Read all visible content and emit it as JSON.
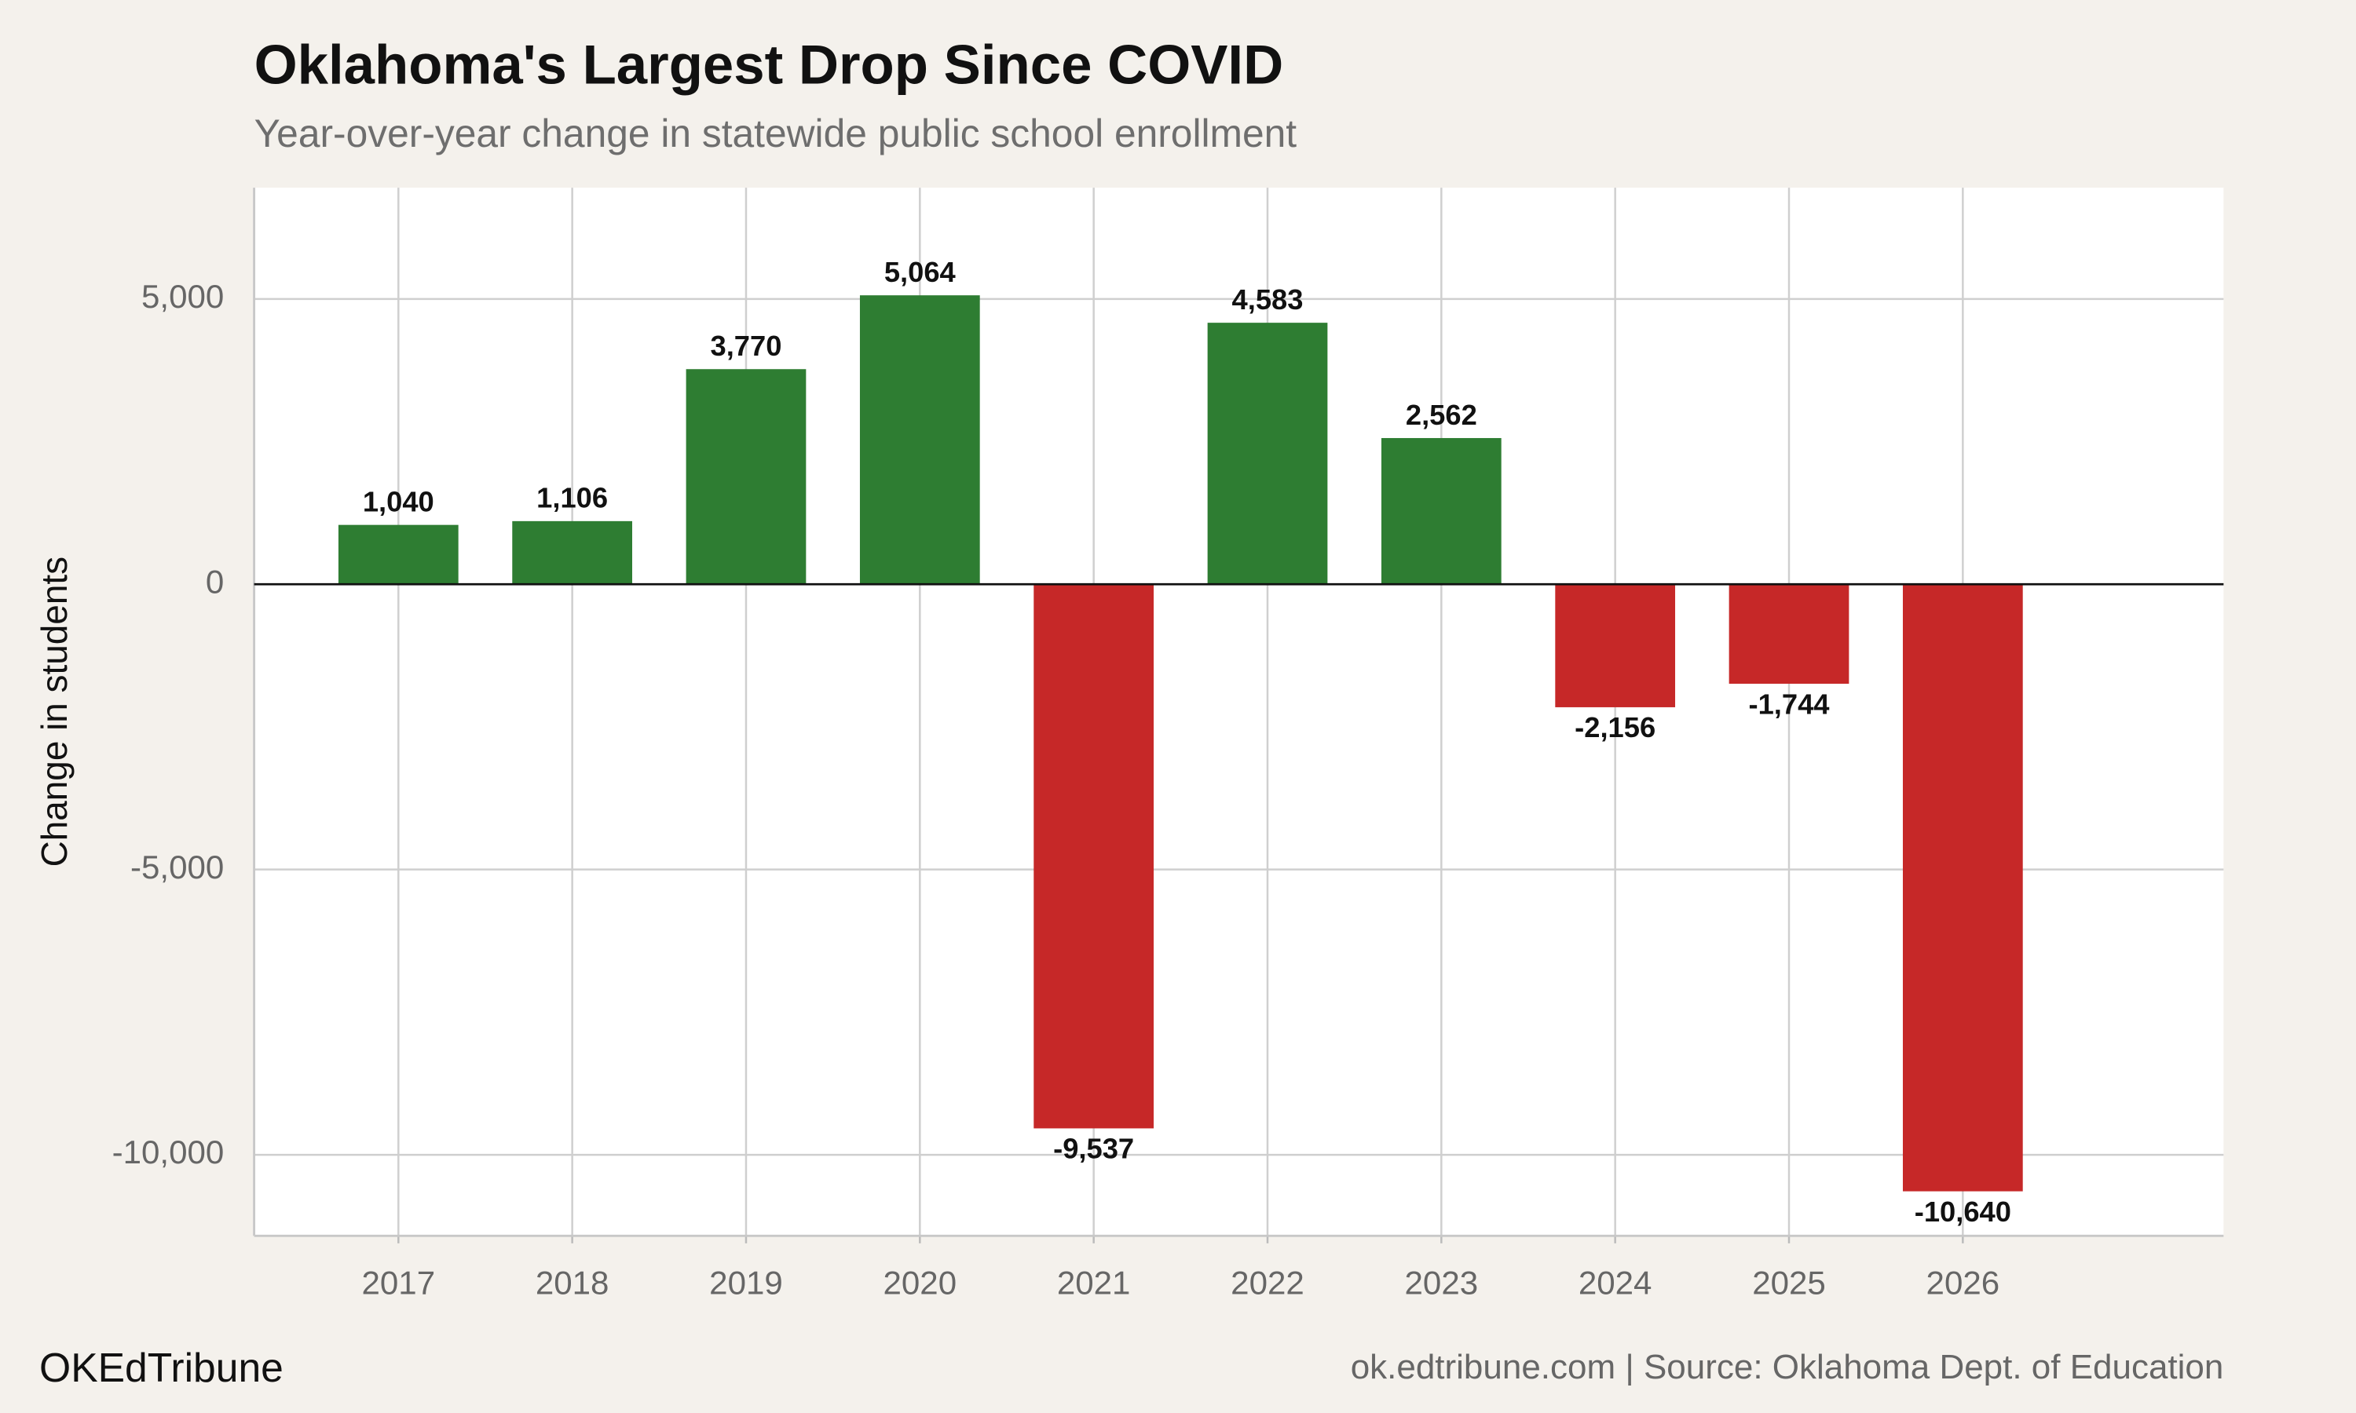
{
  "chart_data": {
    "type": "bar",
    "title": "Oklahoma's Largest Drop Since COVID",
    "subtitle": "Year-over-year change in statewide public school enrollment",
    "y_label": "Change in students",
    "brand": "OKEdTribune",
    "source": "ok.edtribune.com | Source: Oklahoma Dept. of Education",
    "x": [
      2017,
      2018,
      2019,
      2020,
      2021,
      2022,
      2023,
      2024,
      2025,
      2026
    ],
    "values": [
      1040,
      1106,
      3770,
      5064,
      -9537,
      4583,
      2562,
      -2156,
      -1744,
      -10640
    ],
    "value_labels": [
      "1,040",
      "1,106",
      "3,770",
      "5,064",
      "-9,537",
      "4,583",
      "2,562",
      "-2,156",
      "-1,744",
      "-10,640"
    ],
    "positive_color": "#2e7d32",
    "negative_color": "#c62828",
    "xlim": [
      2016.17,
      2027.5
    ],
    "xticks": [
      2017,
      2018,
      2019,
      2020,
      2021,
      2022,
      2023,
      2024,
      2025,
      2026
    ],
    "ylim": [
      -11420,
      6950
    ],
    "yticks": [
      {
        "value": 5000,
        "label": "5,000"
      },
      0,
      {
        "value": -5000,
        "label": "-5,000"
      },
      {
        "value": -10000,
        "label": "-10,000"
      }
    ],
    "grid": true
  }
}
